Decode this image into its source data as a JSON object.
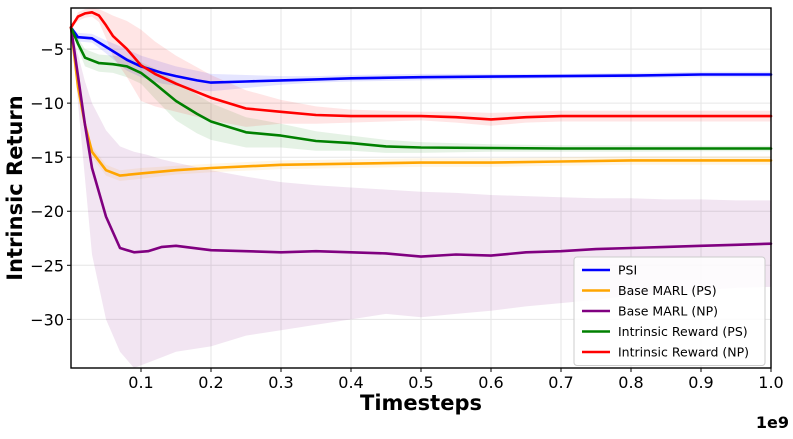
{
  "chart_data": {
    "type": "line",
    "title": "",
    "xlabel": "Timesteps",
    "ylabel": "Intrinsic Return",
    "x_multiplier_label": "1e9",
    "xlim": [
      0.0,
      1.0
    ],
    "ylim": [
      -34.5,
      -1.2
    ],
    "xticks": [
      0.1,
      0.2,
      0.3,
      0.4,
      0.5,
      0.6,
      0.7,
      0.8,
      0.9,
      1.0
    ],
    "xtick_labels": [
      "0.1",
      "0.2",
      "0.3",
      "0.4",
      "0.5",
      "0.6",
      "0.7",
      "0.8",
      "0.9",
      "1.0"
    ],
    "yticks": [
      -5,
      -10,
      -15,
      -20,
      -25,
      -30
    ],
    "ytick_labels": [
      "−5",
      "−10",
      "−15",
      "−20",
      "−25",
      "−30"
    ],
    "grid": true,
    "legend_position": "bottom-right",
    "series": [
      {
        "name": "PSI",
        "color": "#0000ff",
        "x": [
          0.0,
          0.01,
          0.03,
          0.05,
          0.08,
          0.1,
          0.13,
          0.15,
          0.18,
          0.2,
          0.25,
          0.3,
          0.35,
          0.4,
          0.5,
          0.6,
          0.7,
          0.8,
          0.9,
          1.0
        ],
        "y": [
          -3.0,
          -3.9,
          -4.0,
          -4.8,
          -6.0,
          -6.6,
          -7.2,
          -7.5,
          -7.9,
          -8.1,
          -8.0,
          -7.9,
          -7.8,
          -7.7,
          -7.6,
          -7.55,
          -7.5,
          -7.45,
          -7.35,
          -7.35
        ],
        "band_lower": [
          -3.0,
          -3.5,
          -3.6,
          -4.2,
          -5.0,
          -5.6,
          -6.2,
          -6.6,
          -7.0,
          -7.3,
          -7.4,
          -7.5,
          -7.5,
          -7.4,
          -7.3,
          -7.3,
          -7.3,
          -7.2,
          -7.1,
          -7.1
        ],
        "band_upper": [
          -3.0,
          -4.3,
          -4.4,
          -5.4,
          -7.0,
          -7.6,
          -8.2,
          -8.4,
          -8.8,
          -8.9,
          -8.6,
          -8.3,
          -8.1,
          -8.0,
          -7.9,
          -7.8,
          -7.7,
          -7.7,
          -7.6,
          -7.6
        ]
      },
      {
        "name": "Base MARL (PS)",
        "color": "#ffa500",
        "x": [
          0.0,
          0.01,
          0.02,
          0.03,
          0.05,
          0.07,
          0.1,
          0.15,
          0.2,
          0.3,
          0.4,
          0.5,
          0.6,
          0.7,
          0.8,
          0.9,
          1.0
        ],
        "y": [
          -3.0,
          -8.5,
          -12.0,
          -14.5,
          -16.2,
          -16.7,
          -16.5,
          -16.2,
          -16.0,
          -15.7,
          -15.6,
          -15.5,
          -15.5,
          -15.4,
          -15.3,
          -15.3,
          -15.3
        ],
        "band_lower": [
          -3.0,
          -8.0,
          -11.5,
          -14.0,
          -15.7,
          -16.2,
          -16.0,
          -15.8,
          -15.6,
          -15.3,
          -15.2,
          -15.1,
          -15.1,
          -15.0,
          -14.9,
          -14.9,
          -14.9
        ],
        "band_upper": [
          -3.0,
          -9.0,
          -12.5,
          -15.0,
          -16.7,
          -17.2,
          -17.0,
          -16.6,
          -16.4,
          -16.1,
          -16.0,
          -15.9,
          -15.9,
          -15.8,
          -15.7,
          -15.7,
          -15.7
        ]
      },
      {
        "name": "Base MARL (NP)",
        "color": "#800080",
        "x": [
          0.0,
          0.01,
          0.02,
          0.03,
          0.05,
          0.07,
          0.09,
          0.11,
          0.13,
          0.15,
          0.2,
          0.25,
          0.3,
          0.35,
          0.4,
          0.45,
          0.5,
          0.55,
          0.6,
          0.65,
          0.7,
          0.75,
          0.8,
          0.85,
          0.9,
          0.95,
          1.0
        ],
        "y": [
          -3.0,
          -7.5,
          -12.0,
          -16.0,
          -20.5,
          -23.4,
          -23.8,
          -23.7,
          -23.3,
          -23.2,
          -23.6,
          -23.7,
          -23.8,
          -23.7,
          -23.8,
          -23.9,
          -24.2,
          -24.0,
          -24.1,
          -23.8,
          -23.7,
          -23.5,
          -23.4,
          -23.3,
          -23.2,
          -23.1,
          -23.0
        ],
        "band_lower": [
          -3.0,
          -5.5,
          -8.0,
          -10.0,
          -12.5,
          -14.0,
          -14.5,
          -14.8,
          -15.2,
          -15.5,
          -16.2,
          -16.8,
          -17.3,
          -17.6,
          -17.8,
          -18.0,
          -18.2,
          -18.3,
          -18.5,
          -18.6,
          -18.7,
          -18.8,
          -18.8,
          -18.9,
          -18.9,
          -19.0,
          -19.0
        ],
        "band_upper": [
          -3.0,
          -10.0,
          -17.0,
          -24.0,
          -30.0,
          -33.0,
          -34.5,
          -34.0,
          -33.5,
          -33.0,
          -32.5,
          -31.5,
          -31.0,
          -30.5,
          -30.0,
          -29.5,
          -29.8,
          -29.5,
          -29.2,
          -28.8,
          -28.5,
          -28.2,
          -27.8,
          -27.6,
          -27.3,
          -27.1,
          -27.0
        ]
      },
      {
        "name": "Intrinsic Reward (PS)",
        "color": "#008000",
        "x": [
          0.0,
          0.01,
          0.02,
          0.04,
          0.06,
          0.08,
          0.1,
          0.12,
          0.15,
          0.18,
          0.2,
          0.25,
          0.3,
          0.35,
          0.4,
          0.45,
          0.5,
          0.6,
          0.7,
          0.8,
          0.9,
          1.0
        ],
        "y": [
          -3.0,
          -4.5,
          -5.8,
          -6.3,
          -6.4,
          -6.6,
          -7.2,
          -8.2,
          -9.8,
          -11.0,
          -11.7,
          -12.7,
          -13.0,
          -13.5,
          -13.7,
          -14.0,
          -14.1,
          -14.15,
          -14.2,
          -14.2,
          -14.2,
          -14.2
        ],
        "band_lower": [
          -3.0,
          -4.0,
          -5.0,
          -5.5,
          -5.6,
          -5.8,
          -6.2,
          -6.8,
          -8.0,
          -9.2,
          -10.0,
          -11.3,
          -11.9,
          -12.6,
          -13.0,
          -13.4,
          -13.6,
          -13.8,
          -13.9,
          -13.9,
          -13.95,
          -13.95
        ],
        "band_upper": [
          -3.0,
          -5.0,
          -6.6,
          -7.1,
          -7.2,
          -7.6,
          -8.2,
          -9.6,
          -11.6,
          -12.8,
          -13.4,
          -14.1,
          -14.1,
          -14.4,
          -14.4,
          -14.6,
          -14.6,
          -14.5,
          -14.5,
          -14.5,
          -14.45,
          -14.45
        ]
      },
      {
        "name": "Intrinsic Reward (NP)",
        "color": "#ff0000",
        "x": [
          0.0,
          0.01,
          0.02,
          0.03,
          0.04,
          0.05,
          0.06,
          0.08,
          0.1,
          0.12,
          0.15,
          0.2,
          0.25,
          0.3,
          0.35,
          0.4,
          0.45,
          0.5,
          0.55,
          0.6,
          0.65,
          0.7,
          0.8,
          0.9,
          1.0
        ],
        "y": [
          -3.0,
          -2.0,
          -1.7,
          -1.6,
          -1.9,
          -2.8,
          -3.8,
          -5.0,
          -6.5,
          -7.3,
          -8.2,
          -9.5,
          -10.5,
          -10.8,
          -11.1,
          -11.2,
          -11.2,
          -11.2,
          -11.3,
          -11.5,
          -11.3,
          -11.2,
          -11.2,
          -11.2,
          -11.2
        ],
        "band_lower": [
          -3.0,
          -1.6,
          -1.3,
          -1.2,
          -1.3,
          -1.6,
          -1.9,
          -2.4,
          -3.2,
          -4.3,
          -5.6,
          -7.4,
          -8.8,
          -9.7,
          -10.3,
          -10.6,
          -10.7,
          -10.8,
          -10.8,
          -10.9,
          -10.8,
          -10.7,
          -10.7,
          -10.7,
          -10.7
        ],
        "band_upper": [
          -3.0,
          -2.4,
          -2.1,
          -2.0,
          -2.5,
          -4.0,
          -5.7,
          -7.6,
          -9.8,
          -10.3,
          -10.8,
          -11.6,
          -12.2,
          -11.9,
          -11.9,
          -11.8,
          -11.7,
          -11.6,
          -11.8,
          -12.1,
          -11.8,
          -11.7,
          -11.7,
          -11.7,
          -11.7
        ]
      }
    ]
  }
}
